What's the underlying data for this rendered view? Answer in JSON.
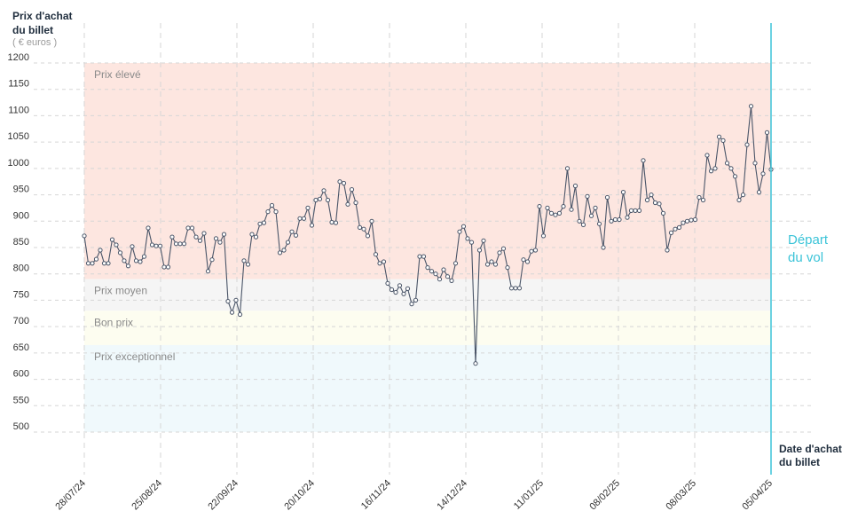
{
  "chart_data": {
    "type": "line",
    "ylabel_line1": "Prix d'achat",
    "ylabel_line2": "du billet",
    "yunit": "( € euros )",
    "xlabel_line1": "Date d'achat",
    "xlabel_line2": "du billet",
    "ylim": [
      500,
      1200
    ],
    "yticks": [
      500,
      550,
      600,
      650,
      700,
      750,
      800,
      850,
      900,
      950,
      1000,
      1050,
      1100,
      1150,
      1200
    ],
    "xticks": [
      "28/07/24",
      "25/08/24",
      "22/09/24",
      "20/10/24",
      "16/11/24",
      "14/12/24",
      "11/01/25",
      "08/02/25",
      "08/03/25",
      "05/04/25"
    ],
    "grid": true,
    "departure_label_line1": "Départ",
    "departure_label_line2": "du vol",
    "bands": [
      {
        "label": "Prix élevé",
        "from": 790,
        "to": 1200,
        "color": "#fde6e0"
      },
      {
        "label": "Prix moyen",
        "from": 730,
        "to": 790,
        "color": "#f5f5f5"
      },
      {
        "label": "Bon prix",
        "from": 665,
        "to": 730,
        "color": "#fdfdf0"
      },
      {
        "label": "Prix exceptionnel",
        "from": 500,
        "to": 665,
        "color": "#f0f9fc"
      }
    ],
    "colors": {
      "line": "#4a5568",
      "marker_fill": "#ffffff",
      "departure": "#3cc4d8",
      "grid": "#d6d6d6"
    },
    "series": [
      {
        "values": [
          872,
          820,
          820,
          828,
          845,
          820,
          820,
          865,
          855,
          840,
          825,
          815,
          852,
          825,
          823,
          833,
          887,
          855,
          853,
          853,
          813,
          813,
          870,
          857,
          857,
          857,
          887,
          887,
          870,
          863,
          877,
          805,
          827,
          867,
          860,
          875,
          748,
          727,
          750,
          723,
          825,
          818,
          875,
          870,
          895,
          897,
          918,
          930,
          918,
          840,
          845,
          860,
          880,
          873,
          905,
          905,
          925,
          892,
          940,
          942,
          958,
          940,
          898,
          897,
          975,
          972,
          932,
          960,
          935,
          888,
          885,
          872,
          900,
          837,
          820,
          823,
          782,
          770,
          765,
          778,
          762,
          772,
          743,
          750,
          833,
          833,
          812,
          805,
          800,
          790,
          808,
          795,
          787,
          820,
          880,
          890,
          867,
          860,
          630,
          845,
          863,
          818,
          823,
          818,
          840,
          848,
          812,
          773,
          773,
          773,
          827,
          823,
          843,
          845,
          928,
          872,
          925,
          915,
          912,
          915,
          928,
          1000,
          922,
          967,
          900,
          893,
          947,
          910,
          925,
          895,
          850,
          945,
          900,
          903,
          903,
          955,
          907,
          920,
          920,
          920,
          1015,
          940,
          950,
          935,
          933,
          915,
          845,
          878,
          885,
          888,
          897,
          900,
          902,
          903,
          945,
          940,
          1025,
          995,
          1000,
          1060,
          1053,
          1010,
          1000,
          985,
          940,
          950,
          1045,
          1118,
          1010,
          955,
          990,
          1068,
          998
        ]
      }
    ]
  }
}
